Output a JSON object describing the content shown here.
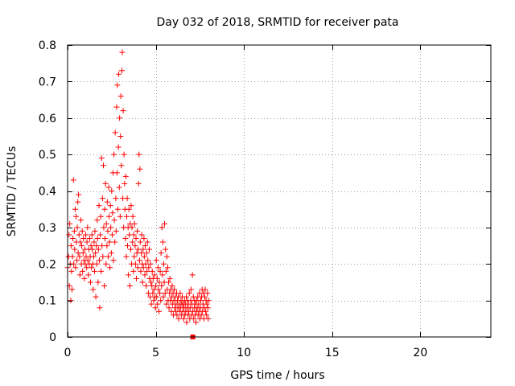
{
  "chart_data": {
    "type": "scatter",
    "title": "Day 032 of 2018, SRMTID for receiver pata",
    "xlabel": "GPS time / hours",
    "ylabel": "SRMTID / TECUs",
    "xlim": [
      0,
      24
    ],
    "ylim": [
      0,
      0.8
    ],
    "xticks": [
      0,
      5,
      10,
      15,
      20
    ],
    "xtick_labels": [
      "0",
      "5",
      "10",
      "15",
      "20"
    ],
    "yticks": [
      0,
      0.1,
      0.2,
      0.3,
      0.4,
      0.5,
      0.6,
      0.7,
      0.8
    ],
    "ytick_labels": [
      "0",
      "0.1",
      "0.2",
      "0.3",
      "0.4",
      "0.5",
      "0.6",
      "0.7",
      "0.8"
    ],
    "grid": true,
    "marker": "+",
    "color": "#ff0000",
    "series": [
      {
        "name": "pata",
        "points": [
          [
            0.0,
            0.19
          ],
          [
            0.05,
            0.22
          ],
          [
            0.08,
            0.28
          ],
          [
            0.1,
            0.14
          ],
          [
            0.12,
            0.31
          ],
          [
            0.15,
            0.2
          ],
          [
            0.18,
            0.1
          ],
          [
            0.2,
            0.25
          ],
          [
            0.22,
            0.18
          ],
          [
            0.25,
            0.13
          ],
          [
            0.28,
            0.22
          ],
          [
            0.3,
            0.27
          ],
          [
            0.33,
            0.43
          ],
          [
            0.35,
            0.2
          ],
          [
            0.38,
            0.29
          ],
          [
            0.4,
            0.24
          ],
          [
            0.43,
            0.35
          ],
          [
            0.45,
            0.19
          ],
          [
            0.48,
            0.33
          ],
          [
            0.5,
            0.26
          ],
          [
            0.53,
            0.21
          ],
          [
            0.55,
            0.3
          ],
          [
            0.58,
            0.37
          ],
          [
            0.6,
            0.23
          ],
          [
            0.62,
            0.39
          ],
          [
            0.65,
            0.28
          ],
          [
            0.68,
            0.22
          ],
          [
            0.7,
            0.17
          ],
          [
            0.72,
            0.26
          ],
          [
            0.75,
            0.32
          ],
          [
            0.78,
            0.2
          ],
          [
            0.8,
            0.25
          ],
          [
            0.83,
            0.29
          ],
          [
            0.85,
            0.18
          ],
          [
            0.88,
            0.23
          ],
          [
            0.9,
            0.27
          ],
          [
            0.93,
            0.21
          ],
          [
            0.95,
            0.16
          ],
          [
            0.98,
            0.24
          ],
          [
            1.0,
            0.2
          ],
          [
            1.03,
            0.28
          ],
          [
            1.05,
            0.22
          ],
          [
            1.08,
            0.19
          ],
          [
            1.1,
            0.26
          ],
          [
            1.13,
            0.3
          ],
          [
            1.15,
            0.21
          ],
          [
            1.18,
            0.17
          ],
          [
            1.2,
            0.24
          ],
          [
            1.23,
            0.2
          ],
          [
            1.25,
            0.27
          ],
          [
            1.28,
            0.22
          ],
          [
            1.3,
            0.15
          ],
          [
            1.33,
            0.25
          ],
          [
            1.35,
            0.19
          ],
          [
            1.38,
            0.28
          ],
          [
            1.4,
            0.24
          ],
          [
            1.43,
            0.2
          ],
          [
            1.45,
            0.13
          ],
          [
            1.48,
            0.22
          ],
          [
            1.5,
            0.26
          ],
          [
            1.53,
            0.18
          ],
          [
            1.55,
            0.29
          ],
          [
            1.58,
            0.23
          ],
          [
            1.6,
            0.11
          ],
          [
            1.63,
            0.25
          ],
          [
            1.65,
            0.2
          ],
          [
            1.68,
            0.32
          ],
          [
            1.7,
            0.27
          ],
          [
            1.73,
            0.15
          ],
          [
            1.75,
            0.24
          ],
          [
            1.78,
            0.36
          ],
          [
            1.8,
            0.21
          ],
          [
            1.82,
            0.08
          ],
          [
            1.85,
            0.28
          ],
          [
            1.88,
            0.33
          ],
          [
            1.9,
            0.18
          ],
          [
            1.93,
            0.49
          ],
          [
            1.95,
            0.25
          ],
          [
            1.98,
            0.38
          ],
          [
            2.0,
            0.22
          ],
          [
            2.03,
            0.47
          ],
          [
            2.05,
            0.3
          ],
          [
            2.08,
            0.14
          ],
          [
            2.1,
            0.35
          ],
          [
            2.12,
            0.27
          ],
          [
            2.15,
            0.42
          ],
          [
            2.18,
            0.2
          ],
          [
            2.2,
            0.31
          ],
          [
            2.23,
            0.25
          ],
          [
            2.25,
            0.37
          ],
          [
            2.28,
            0.29
          ],
          [
            2.3,
            0.22
          ],
          [
            2.33,
            0.41
          ],
          [
            2.35,
            0.33
          ],
          [
            2.38,
            0.26
          ],
          [
            2.4,
            0.19
          ],
          [
            2.43,
            0.36
          ],
          [
            2.45,
            0.3
          ],
          [
            2.48,
            0.23
          ],
          [
            2.5,
            0.4
          ],
          [
            2.53,
            0.28
          ],
          [
            2.55,
            0.34
          ],
          [
            2.58,
            0.45
          ],
          [
            2.6,
            0.21
          ],
          [
            2.63,
            0.5
          ],
          [
            2.65,
            0.32
          ],
          [
            2.68,
            0.26
          ],
          [
            2.7,
            0.56
          ],
          [
            2.73,
            0.38
          ],
          [
            2.75,
            0.29
          ],
          [
            2.78,
            0.63
          ],
          [
            2.8,
            0.45
          ],
          [
            2.82,
            0.69
          ],
          [
            2.85,
            0.35
          ],
          [
            2.88,
            0.52
          ],
          [
            2.9,
            0.72
          ],
          [
            2.93,
            0.41
          ],
          [
            2.95,
            0.6
          ],
          [
            2.98,
            0.33
          ],
          [
            3.0,
            0.55
          ],
          [
            3.02,
            0.66
          ],
          [
            3.05,
            0.47
          ],
          [
            3.08,
            0.73
          ],
          [
            3.1,
            0.78
          ],
          [
            3.13,
            0.38
          ],
          [
            3.15,
            0.62
          ],
          [
            3.18,
            0.3
          ],
          [
            3.2,
            0.5
          ],
          [
            3.23,
            0.42
          ],
          [
            3.25,
            0.35
          ],
          [
            3.28,
            0.27
          ],
          [
            3.3,
            0.44
          ],
          [
            3.33,
            0.22
          ],
          [
            3.35,
            0.33
          ],
          [
            3.38,
            0.38
          ],
          [
            3.4,
            0.25
          ],
          [
            3.43,
            0.3
          ],
          [
            3.45,
            0.17
          ],
          [
            3.48,
            0.35
          ],
          [
            3.5,
            0.28
          ],
          [
            3.53,
            0.14
          ],
          [
            3.55,
            0.31
          ],
          [
            3.58,
            0.24
          ],
          [
            3.6,
            0.36
          ],
          [
            3.63,
            0.2
          ],
          [
            3.65,
            0.3
          ],
          [
            3.68,
            0.26
          ],
          [
            3.7,
            0.33
          ],
          [
            3.73,
            0.18
          ],
          [
            3.75,
            0.28
          ],
          [
            3.78,
            0.22
          ],
          [
            3.8,
            0.31
          ],
          [
            3.83,
            0.25
          ],
          [
            3.85,
            0.2
          ],
          [
            3.88,
            0.27
          ],
          [
            3.9,
            0.16
          ],
          [
            3.93,
            0.23
          ],
          [
            3.95,
            0.29
          ],
          [
            3.98,
            0.19
          ],
          [
            4.0,
            0.24
          ],
          [
            4.02,
            0.42
          ],
          [
            4.05,
            0.5
          ],
          [
            4.08,
            0.21
          ],
          [
            4.1,
            0.46
          ],
          [
            4.12,
            0.26
          ],
          [
            4.15,
            0.18
          ],
          [
            4.18,
            0.23
          ],
          [
            4.2,
            0.28
          ],
          [
            4.23,
            0.2
          ],
          [
            4.25,
            0.15
          ],
          [
            4.28,
            0.24
          ],
          [
            4.3,
            0.19
          ],
          [
            4.33,
            0.27
          ],
          [
            4.35,
            0.22
          ],
          [
            4.38,
            0.17
          ],
          [
            4.4,
            0.25
          ],
          [
            4.43,
            0.2
          ],
          [
            4.45,
            0.14
          ],
          [
            4.48,
            0.23
          ],
          [
            4.5,
            0.18
          ],
          [
            4.53,
            0.26
          ],
          [
            4.55,
            0.21
          ],
          [
            4.58,
            0.12
          ],
          [
            4.6,
            0.19
          ],
          [
            4.63,
            0.24
          ],
          [
            4.65,
            0.16
          ],
          [
            4.68,
            0.11
          ],
          [
            4.7,
            0.2
          ],
          [
            4.73,
            0.15
          ],
          [
            4.75,
            0.09
          ],
          [
            4.78,
            0.14
          ],
          [
            4.8,
            0.18
          ],
          [
            4.83,
            0.12
          ],
          [
            4.85,
            0.16
          ],
          [
            4.88,
            0.1
          ],
          [
            4.9,
            0.13
          ],
          [
            4.93,
            0.17
          ],
          [
            4.95,
            0.11
          ],
          [
            4.98,
            0.08
          ],
          [
            5.0,
            0.14
          ],
          [
            5.03,
            0.21
          ],
          [
            5.05,
            0.11
          ],
          [
            5.08,
            0.16
          ],
          [
            5.1,
            0.09
          ],
          [
            5.13,
            0.19
          ],
          [
            5.15,
            0.13
          ],
          [
            5.18,
            0.07
          ],
          [
            5.2,
            0.15
          ],
          [
            5.23,
            0.12
          ],
          [
            5.25,
            0.18
          ],
          [
            5.28,
            0.1
          ],
          [
            5.3,
            0.23
          ],
          [
            5.33,
            0.14
          ],
          [
            5.35,
            0.3
          ],
          [
            5.38,
            0.17
          ],
          [
            5.4,
            0.26
          ],
          [
            5.43,
            0.11
          ],
          [
            5.45,
            0.2
          ],
          [
            5.48,
            0.15
          ],
          [
            5.5,
            0.31
          ],
          [
            5.53,
            0.12
          ],
          [
            5.55,
            0.24
          ],
          [
            5.58,
            0.18
          ],
          [
            5.6,
            0.09
          ],
          [
            5.63,
            0.22
          ],
          [
            5.65,
            0.13
          ],
          [
            5.68,
            0.19
          ],
          [
            5.7,
            0.1
          ],
          [
            5.73,
            0.15
          ],
          [
            5.75,
            0.08
          ],
          [
            5.78,
            0.12
          ],
          [
            5.8,
            0.16
          ],
          [
            5.83,
            0.1
          ],
          [
            5.85,
            0.13
          ],
          [
            5.88,
            0.07
          ],
          [
            5.9,
            0.11
          ],
          [
            5.93,
            0.14
          ],
          [
            5.95,
            0.09
          ],
          [
            5.98,
            0.12
          ],
          [
            6.0,
            0.06
          ],
          [
            6.03,
            0.1
          ],
          [
            6.05,
            0.13
          ],
          [
            6.08,
            0.08
          ],
          [
            6.1,
            0.11
          ],
          [
            6.13,
            0.07
          ],
          [
            6.15,
            0.09
          ],
          [
            6.18,
            0.12
          ],
          [
            6.2,
            0.06
          ],
          [
            6.23,
            0.1
          ],
          [
            6.25,
            0.08
          ],
          [
            6.28,
            0.11
          ],
          [
            6.3,
            0.05
          ],
          [
            6.33,
            0.09
          ],
          [
            6.35,
            0.07
          ],
          [
            6.38,
            0.12
          ],
          [
            6.4,
            0.08
          ],
          [
            6.43,
            0.1
          ],
          [
            6.45,
            0.06
          ],
          [
            6.48,
            0.09
          ],
          [
            6.5,
            0.11
          ],
          [
            6.53,
            0.07
          ],
          [
            6.55,
            0.09
          ],
          [
            6.58,
            0.05
          ],
          [
            6.6,
            0.08
          ],
          [
            6.63,
            0.1
          ],
          [
            6.65,
            0.06
          ],
          [
            6.68,
            0.09
          ],
          [
            6.7,
            0.07
          ],
          [
            6.73,
            0.11
          ],
          [
            6.75,
            0.04
          ],
          [
            6.78,
            0.08
          ],
          [
            6.8,
            0.1
          ],
          [
            6.83,
            0.06
          ],
          [
            6.85,
            0.09
          ],
          [
            6.88,
            0.07
          ],
          [
            6.9,
            0.12
          ],
          [
            6.93,
            0.05
          ],
          [
            6.95,
            0.08
          ],
          [
            6.98,
            0.1
          ],
          [
            7.0,
            0.13
          ],
          [
            7.03,
            0.06
          ],
          [
            7.05,
            0.09
          ],
          [
            7.08,
            0.17
          ],
          [
            7.1,
            0.07
          ],
          [
            7.13,
            0.11
          ],
          [
            7.15,
            0.05
          ],
          [
            7.18,
            0.08
          ],
          [
            7.2,
            0.1
          ],
          [
            7.23,
            0.06
          ],
          [
            7.25,
            0.09
          ],
          [
            7.28,
            0.04
          ],
          [
            7.3,
            0.07
          ],
          [
            7.33,
            0.1
          ],
          [
            7.35,
            0.08
          ],
          [
            7.38,
            0.11
          ],
          [
            7.4,
            0.06
          ],
          [
            7.43,
            0.09
          ],
          [
            7.45,
            0.07
          ],
          [
            7.48,
            0.12
          ],
          [
            7.5,
            0.05
          ],
          [
            7.53,
            0.08
          ],
          [
            7.55,
            0.1
          ],
          [
            7.58,
            0.06
          ],
          [
            7.6,
            0.11
          ],
          [
            7.63,
            0.13
          ],
          [
            7.65,
            0.07
          ],
          [
            7.68,
            0.09
          ],
          [
            7.7,
            0.12
          ],
          [
            7.73,
            0.05
          ],
          [
            7.75,
            0.08
          ],
          [
            7.78,
            0.11
          ],
          [
            7.8,
            0.13
          ],
          [
            7.83,
            0.07
          ],
          [
            7.85,
            0.1
          ],
          [
            7.88,
            0.06
          ],
          [
            7.9,
            0.09
          ],
          [
            7.93,
            0.12
          ],
          [
            7.95,
            0.08
          ],
          [
            7.97,
            0.05
          ],
          [
            7.99,
            0.1
          ]
        ]
      }
    ],
    "outlier_marker": {
      "x": 7.1,
      "y": 0.0
    }
  }
}
